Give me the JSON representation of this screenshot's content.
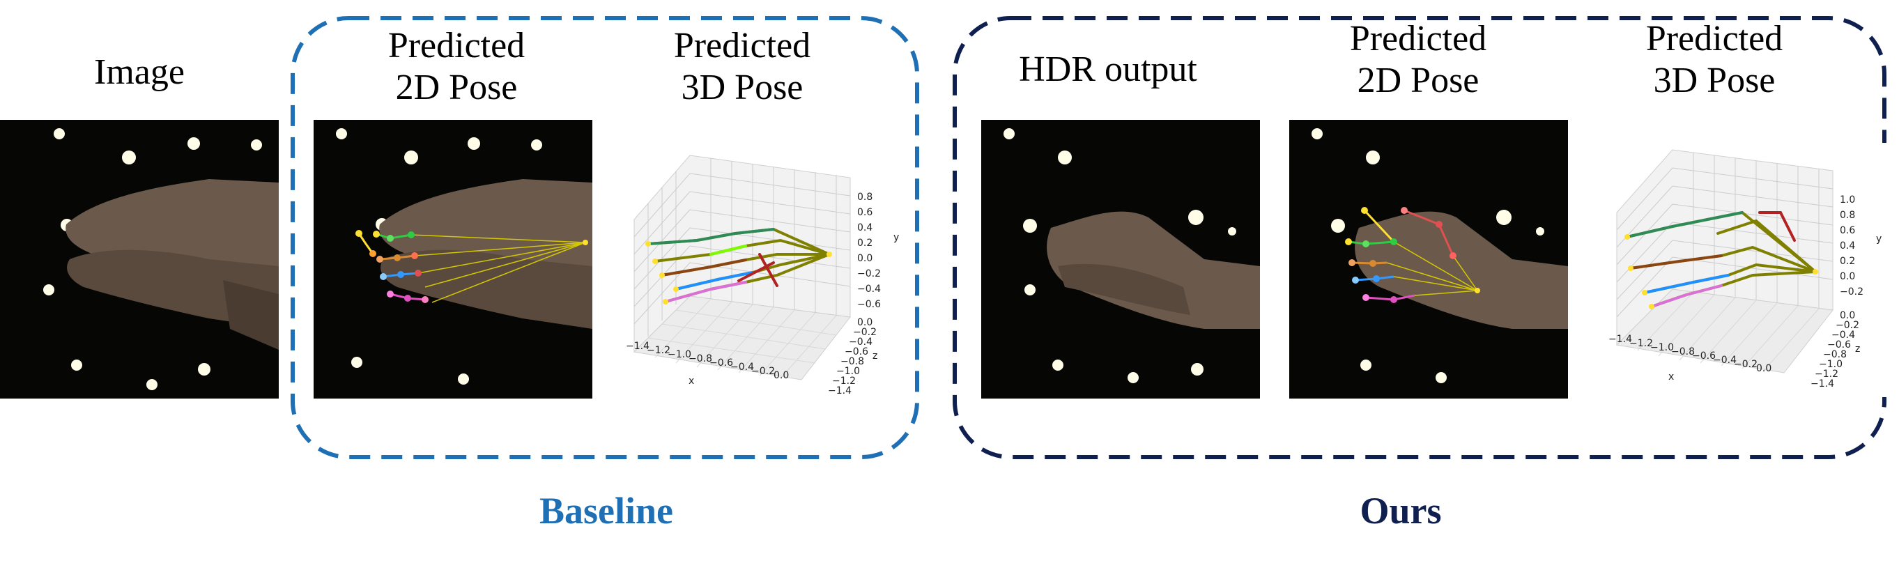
{
  "columns": {
    "image": "Image",
    "baseline_2d": "Predicted\n2D Pose",
    "baseline_3d": "Predicted\n3D Pose",
    "hdr": "HDR output",
    "ours_2d": "Predicted\n2D Pose",
    "ours_3d": "Predicted\n3D Pose"
  },
  "groups": {
    "baseline": {
      "label": "Baseline",
      "color": "#1f6fb5"
    },
    "ours": {
      "label": "Ours",
      "color": "#0f1f4f"
    }
  },
  "baseline_plot": {
    "x_ticks": [
      "−1.4",
      "−1.2",
      "−1.0",
      "−0.8",
      "−0.6",
      "−0.4",
      "−0.2",
      "0.0"
    ],
    "x_label": "x",
    "y_ticks": [
      "0.8",
      "0.6",
      "0.4",
      "0.2",
      "0.0",
      "−0.2",
      "−0.4",
      "−0.6"
    ],
    "y_label": "y",
    "z_ticks": [
      "0.0",
      "−0.2",
      "−0.4",
      "−0.6",
      "−0.8",
      "−1.0",
      "−1.2",
      "−1.4"
    ],
    "z_label": "z"
  },
  "ours_plot": {
    "x_ticks": [
      "−1.4",
      "−1.2",
      "−1.0",
      "−0.8",
      "−0.6",
      "−0.4",
      "−0.2",
      "0.0"
    ],
    "x_label": "x",
    "y_ticks": [
      "1.0",
      "0.8",
      "0.6",
      "0.4",
      "0.2",
      "0.0",
      "−0.2"
    ],
    "y_label": "y",
    "z_ticks": [
      "0.0",
      "−0.2",
      "−0.4",
      "−0.6",
      "−0.8",
      "−1.0",
      "−1.2",
      "−1.4"
    ],
    "z_label": "z"
  }
}
